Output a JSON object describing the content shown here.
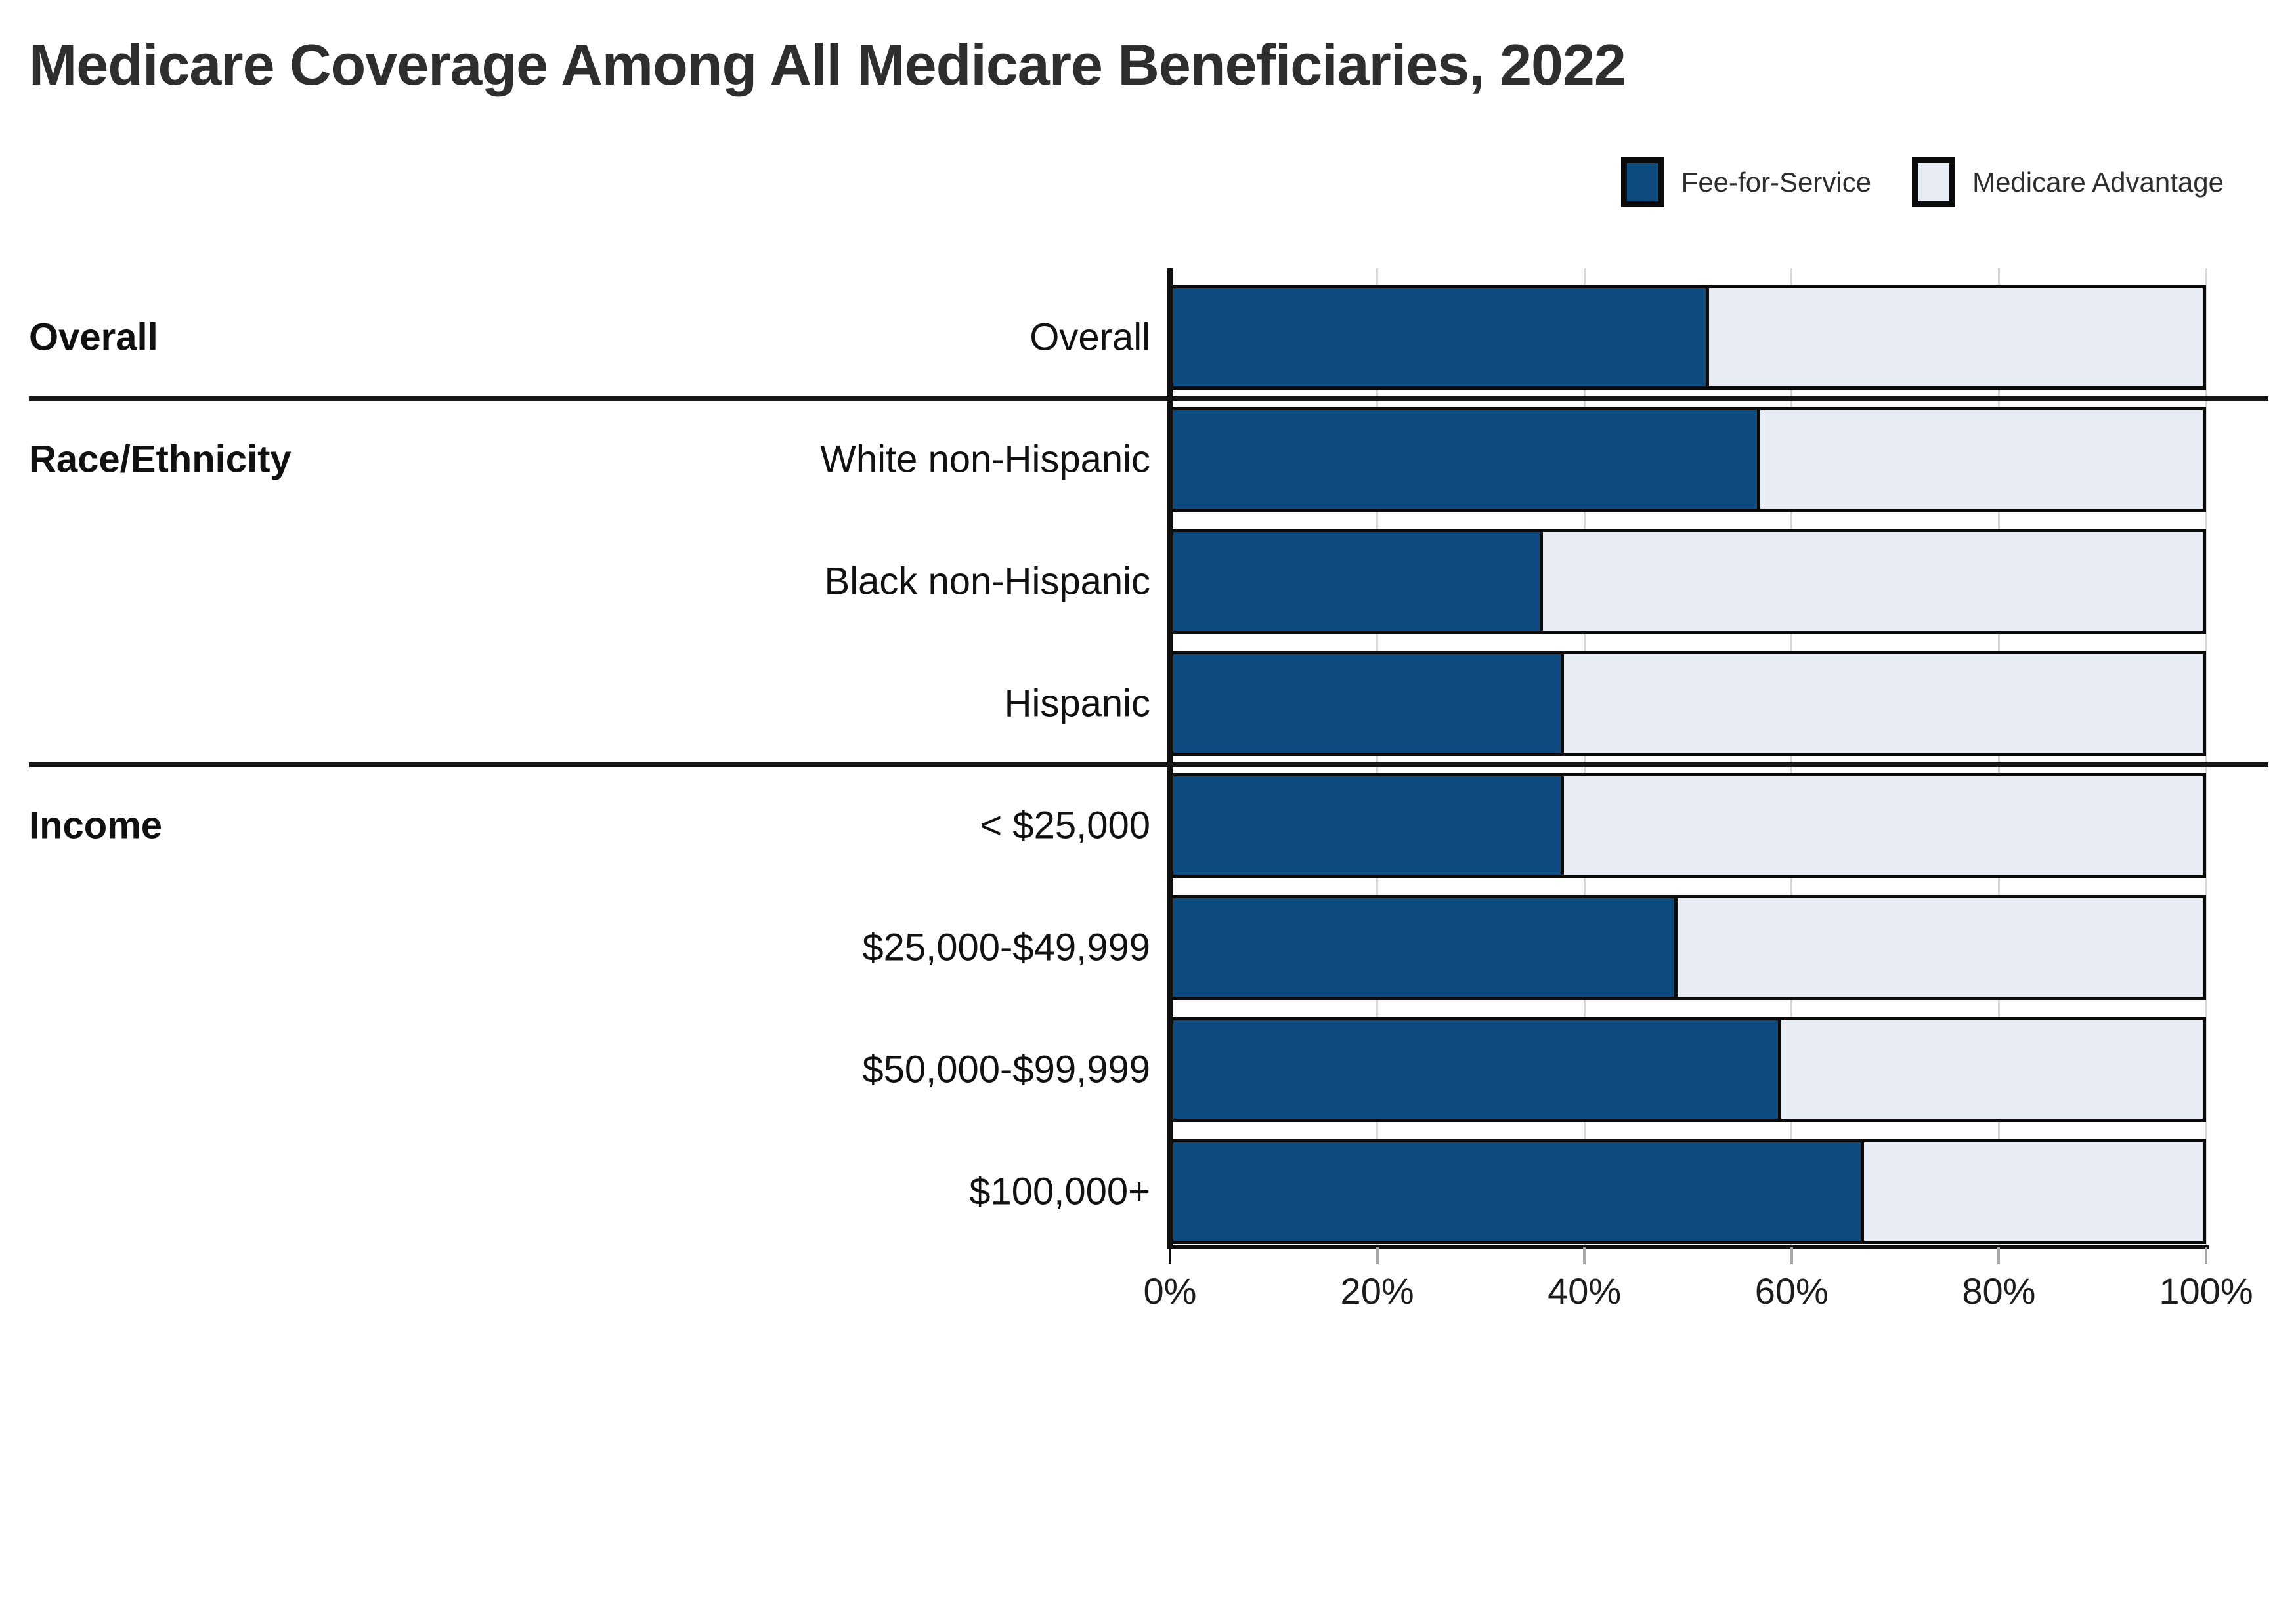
{
  "title": "Medicare Coverage Among All Medicare Beneficiaries, 2022",
  "legend": {
    "items": [
      {
        "label": "Fee-for-Service",
        "color": "#0D4A7F"
      },
      {
        "label": "Medicare Advantage",
        "color": "#E8ECF4"
      }
    ]
  },
  "chart_data": {
    "type": "bar",
    "stacked": true,
    "orientation": "horizontal",
    "title": "Medicare Coverage Among All Medicare Beneficiaries, 2022",
    "categories": [
      "Overall",
      "White non-Hispanic",
      "Black non-Hispanic",
      "Hispanic",
      "< $25,000",
      "$25,000-$49,999",
      "$50,000-$99,999",
      "$100,000+"
    ],
    "series": [
      {
        "name": "Fee-for-Service",
        "color": "#0D4A7F",
        "values": [
          52,
          57,
          36,
          38,
          38,
          49,
          59,
          67
        ]
      },
      {
        "name": "Medicare Advantage",
        "color": "#E8ECF4",
        "values": [
          48,
          43,
          64,
          62,
          62,
          51,
          41,
          33
        ]
      }
    ],
    "groups": [
      {
        "label": "Overall",
        "first_row": 0,
        "rows": [
          0
        ]
      },
      {
        "label": "Race/Ethnicity",
        "first_row": 1,
        "rows": [
          1,
          2,
          3
        ]
      },
      {
        "label": "Income",
        "first_row": 4,
        "rows": [
          4,
          5,
          6,
          7
        ]
      }
    ],
    "xlabel": "",
    "ylabel": "",
    "xlim": [
      0,
      100
    ],
    "x_ticks": [
      {
        "value": 0,
        "label": "0%"
      },
      {
        "value": 20,
        "label": "20%"
      },
      {
        "value": 40,
        "label": "40%"
      },
      {
        "value": 60,
        "label": "60%"
      },
      {
        "value": 80,
        "label": "80%"
      },
      {
        "value": 100,
        "label": "100%"
      }
    ],
    "grid": true,
    "legend_position": "top-right"
  },
  "colors": {
    "fee_for_service": "#0D4A7F",
    "medicare_advantage": "#E8ECF4",
    "bar_border": "#0B0B0B",
    "segment_divider": "#0B0B0B",
    "gridline": "#D6D6D6",
    "axis": "#0F0F0F",
    "minor_tick": "#A8A8A8",
    "separator": "#161616",
    "title_text": "#2E2E2E",
    "label_text": "#111111",
    "tick_text": "#1C1C1C"
  }
}
